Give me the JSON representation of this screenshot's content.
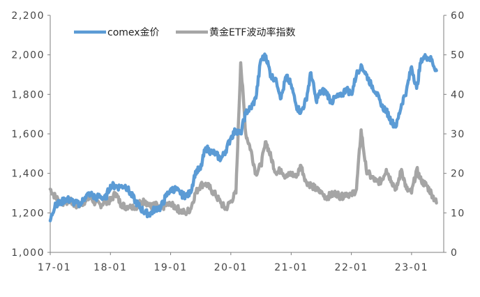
{
  "chart_data": {
    "type": "line",
    "x_ticks": [
      "17-01",
      "18-01",
      "19-01",
      "20-01",
      "21-01",
      "22-01",
      "23-01"
    ],
    "y_left": {
      "min": 1000,
      "max": 2200,
      "ticks": [
        "1,000",
        "1,200",
        "1,400",
        "1,600",
        "1,800",
        "2,000",
        "2,200"
      ]
    },
    "y_right": {
      "min": 0,
      "max": 60,
      "ticks": [
        "0",
        "10",
        "20",
        "30",
        "40",
        "50",
        "60"
      ]
    },
    "grid": false,
    "legend_position": "top-left",
    "series": [
      {
        "name": "comex金价",
        "axis": "left",
        "color": "#5b9bd5",
        "points": [
          [
            "2017-01",
            1160
          ],
          [
            "2017-02",
            1250
          ],
          [
            "2017-03",
            1245
          ],
          [
            "2017-04",
            1270
          ],
          [
            "2017-05",
            1265
          ],
          [
            "2017-06",
            1250
          ],
          [
            "2017-07",
            1240
          ],
          [
            "2017-08",
            1280
          ],
          [
            "2017-09",
            1300
          ],
          [
            "2017-10",
            1275
          ],
          [
            "2017-11",
            1285
          ],
          [
            "2017-12",
            1270
          ],
          [
            "2018-01",
            1340
          ],
          [
            "2018-02",
            1335
          ],
          [
            "2018-03",
            1330
          ],
          [
            "2018-04",
            1340
          ],
          [
            "2018-05",
            1300
          ],
          [
            "2018-06",
            1260
          ],
          [
            "2018-07",
            1225
          ],
          [
            "2018-08",
            1200
          ],
          [
            "2018-09",
            1195
          ],
          [
            "2018-10",
            1225
          ],
          [
            "2018-11",
            1225
          ],
          [
            "2018-12",
            1280
          ],
          [
            "2019-01",
            1320
          ],
          [
            "2019-02",
            1320
          ],
          [
            "2019-03",
            1295
          ],
          [
            "2019-04",
            1285
          ],
          [
            "2019-05",
            1300
          ],
          [
            "2019-06",
            1410
          ],
          [
            "2019-07",
            1420
          ],
          [
            "2019-08",
            1530
          ],
          [
            "2019-09",
            1510
          ],
          [
            "2019-10",
            1500
          ],
          [
            "2019-11",
            1470
          ],
          [
            "2019-12",
            1515
          ],
          [
            "2020-01",
            1580
          ],
          [
            "2020-02",
            1620
          ],
          [
            "2020-03",
            1600
          ],
          [
            "2020-04",
            1710
          ],
          [
            "2020-05",
            1730
          ],
          [
            "2020-06",
            1780
          ],
          [
            "2020-07",
            1975
          ],
          [
            "2020-08",
            1995
          ],
          [
            "2020-09",
            1890
          ],
          [
            "2020-10",
            1880
          ],
          [
            "2020-11",
            1780
          ],
          [
            "2020-12",
            1890
          ],
          [
            "2021-01",
            1850
          ],
          [
            "2021-02",
            1740
          ],
          [
            "2021-03",
            1710
          ],
          [
            "2021-04",
            1770
          ],
          [
            "2021-05",
            1910
          ],
          [
            "2021-06",
            1770
          ],
          [
            "2021-07",
            1815
          ],
          [
            "2021-08",
            1815
          ],
          [
            "2021-09",
            1760
          ],
          [
            "2021-10",
            1785
          ],
          [
            "2021-11",
            1790
          ],
          [
            "2021-12",
            1830
          ],
          [
            "2022-01",
            1800
          ],
          [
            "2022-02",
            1900
          ],
          [
            "2022-03",
            1950
          ],
          [
            "2022-04",
            1900
          ],
          [
            "2022-05",
            1850
          ],
          [
            "2022-06",
            1810
          ],
          [
            "2022-07",
            1740
          ],
          [
            "2022-08",
            1720
          ],
          [
            "2022-09",
            1660
          ],
          [
            "2022-10",
            1640
          ],
          [
            "2022-11",
            1750
          ],
          [
            "2022-12",
            1820
          ],
          [
            "2023-01",
            1940
          ],
          [
            "2023-02",
            1830
          ],
          [
            "2023-03",
            1980
          ],
          [
            "2023-04",
            1990
          ],
          [
            "2023-05",
            1975
          ],
          [
            "2023-06",
            1920
          ]
        ]
      },
      {
        "name": "黄金ETF波动率指数",
        "axis": "right",
        "color": "#a5a5a5",
        "points": [
          [
            "2017-01",
            16
          ],
          [
            "2017-02",
            14
          ],
          [
            "2017-03",
            13
          ],
          [
            "2017-04",
            12.5
          ],
          [
            "2017-05",
            13
          ],
          [
            "2017-06",
            12
          ],
          [
            "2017-07",
            12
          ],
          [
            "2017-08",
            13
          ],
          [
            "2017-09",
            14
          ],
          [
            "2017-10",
            12.5
          ],
          [
            "2017-11",
            12
          ],
          [
            "2017-12",
            13
          ],
          [
            "2018-01",
            13
          ],
          [
            "2018-02",
            15
          ],
          [
            "2018-03",
            12.5
          ],
          [
            "2018-04",
            11.5
          ],
          [
            "2018-05",
            12
          ],
          [
            "2018-06",
            11.5
          ],
          [
            "2018-07",
            12.5
          ],
          [
            "2018-08",
            13
          ],
          [
            "2018-09",
            11.5
          ],
          [
            "2018-10",
            12
          ],
          [
            "2018-11",
            11
          ],
          [
            "2018-12",
            12
          ],
          [
            "2019-01",
            12
          ],
          [
            "2019-02",
            11.5
          ],
          [
            "2019-03",
            10.5
          ],
          [
            "2019-04",
            10
          ],
          [
            "2019-05",
            11
          ],
          [
            "2019-06",
            15
          ],
          [
            "2019-07",
            17
          ],
          [
            "2019-08",
            17.5
          ],
          [
            "2019-09",
            16
          ],
          [
            "2019-10",
            14.5
          ],
          [
            "2019-11",
            12.5
          ],
          [
            "2019-12",
            11
          ],
          [
            "2020-01",
            13
          ],
          [
            "2020-02",
            15
          ],
          [
            "2020-03",
            48
          ],
          [
            "2020-04",
            30
          ],
          [
            "2020-05",
            26
          ],
          [
            "2020-06",
            20
          ],
          [
            "2020-07",
            22
          ],
          [
            "2020-08",
            28
          ],
          [
            "2020-09",
            24
          ],
          [
            "2020-10",
            20
          ],
          [
            "2020-11",
            21
          ],
          [
            "2020-12",
            19
          ],
          [
            "2021-01",
            20
          ],
          [
            "2021-02",
            19
          ],
          [
            "2021-03",
            22
          ],
          [
            "2021-04",
            18
          ],
          [
            "2021-05",
            17
          ],
          [
            "2021-06",
            16
          ],
          [
            "2021-07",
            15
          ],
          [
            "2021-08",
            14
          ],
          [
            "2021-09",
            14.5
          ],
          [
            "2021-10",
            15
          ],
          [
            "2021-11",
            14
          ],
          [
            "2021-12",
            15
          ],
          [
            "2022-01",
            14.5
          ],
          [
            "2022-02",
            16
          ],
          [
            "2022-03",
            31
          ],
          [
            "2022-04",
            21
          ],
          [
            "2022-05",
            19
          ],
          [
            "2022-06",
            18
          ],
          [
            "2022-07",
            18
          ],
          [
            "2022-08",
            21
          ],
          [
            "2022-09",
            18
          ],
          [
            "2022-10",
            16
          ],
          [
            "2022-11",
            21
          ],
          [
            "2022-12",
            16
          ],
          [
            "2023-01",
            15
          ],
          [
            "2023-02",
            21
          ],
          [
            "2023-03",
            18
          ],
          [
            "2023-04",
            17
          ],
          [
            "2023-05",
            15
          ],
          [
            "2023-06",
            12.5
          ]
        ]
      }
    ]
  }
}
